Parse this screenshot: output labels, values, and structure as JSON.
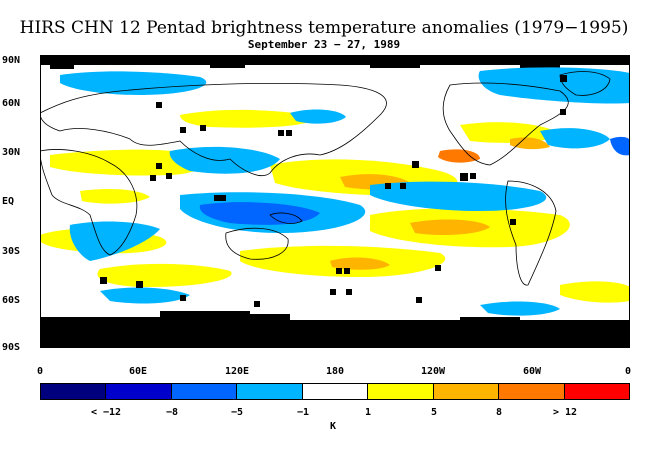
{
  "title": "HIRS CHN 12 Pentad brightness temperature anomalies (1979−1995)",
  "subtitle": "September 23 − 27, 1989",
  "lat_labels": [
    "90N",
    "60N",
    "30N",
    "EQ",
    "30S",
    "60S",
    "90S"
  ],
  "lon_labels": [
    "0",
    "60E",
    "120E",
    "180",
    "120W",
    "60W",
    "0"
  ],
  "colorbar": {
    "colors": [
      "#00007f",
      "#0000cc",
      "#0066ff",
      "#00b4ff",
      "#ffffff",
      "#ffff00",
      "#ffb400",
      "#ff7800",
      "#ff0000"
    ],
    "labels": [
      "< −12",
      "−8",
      "−5",
      "−1",
      "1",
      "5",
      "8",
      "> 12"
    ],
    "unit": "K"
  }
}
